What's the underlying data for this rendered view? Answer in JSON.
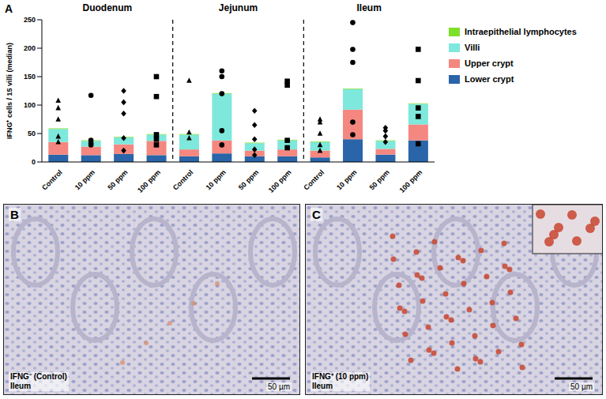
{
  "chart_data": {
    "type": "bar",
    "panel": "A",
    "stacked": true,
    "grid": false,
    "legend": "right",
    "groups": [
      "Duodenum",
      "Jejunum",
      "Ileum"
    ],
    "y_label": "IFNG⁺ cells / 15 villi (median)",
    "categories": [
      "Control",
      "10 ppm",
      "50 ppm",
      "100 ppm",
      "Control",
      "10 ppm",
      "50 ppm",
      "100 ppm",
      "Control",
      "10 ppm",
      "50 ppm",
      "100 ppm"
    ],
    "ylim": [
      0,
      250
    ],
    "yticks": [
      0,
      50,
      100,
      150,
      200,
      250
    ],
    "series": [
      {
        "name": "Intraepithelial lymphocytes",
        "color": "#7ee02a",
        "values": [
          1,
          1,
          1,
          1,
          1,
          1,
          1,
          1,
          1,
          1,
          1,
          1
        ]
      },
      {
        "name": "Villi",
        "color": "#7ee8dc",
        "values": [
          23,
          10,
          12,
          11,
          26,
          82,
          13,
          16,
          15,
          36,
          14,
          36
        ]
      },
      {
        "name": "Upper crypt",
        "color": "#f4877f",
        "values": [
          22,
          15,
          17,
          25,
          12,
          23,
          10,
          12,
          12,
          52,
          10,
          28
        ]
      },
      {
        "name": "Lower crypt",
        "color": "#2965a8",
        "values": [
          13,
          12,
          14,
          12,
          10,
          15,
          10,
          10,
          8,
          40,
          13,
          38
        ]
      }
    ],
    "points": [
      {
        "marker": "triangle",
        "values": [
          108,
          95,
          75,
          45,
          35
        ]
      },
      {
        "marker": "circle",
        "values": [
          117,
          38,
          33,
          30
        ]
      },
      {
        "marker": "diamond",
        "values": [
          125,
          105,
          85,
          42,
          20
        ]
      },
      {
        "marker": "square",
        "values": [
          150,
          115,
          48,
          40,
          30
        ]
      },
      {
        "marker": "triangle",
        "values": [
          143,
          52,
          42
        ]
      },
      {
        "marker": "circle",
        "values": [
          160,
          150,
          120,
          55,
          30
        ]
      },
      {
        "marker": "diamond",
        "values": [
          90,
          65,
          40,
          22,
          12
        ]
      },
      {
        "marker": "square",
        "values": [
          142,
          135,
          38,
          25
        ]
      },
      {
        "marker": "triangle",
        "values": [
          75,
          70,
          50,
          30,
          20
        ]
      },
      {
        "marker": "circle",
        "values": [
          245,
          198,
          175,
          70,
          48
        ]
      },
      {
        "marker": "diamond",
        "values": [
          60,
          55,
          45,
          35
        ]
      },
      {
        "marker": "square",
        "values": [
          198,
          143,
          95,
          80,
          32
        ]
      }
    ]
  },
  "images": [
    {
      "panel": "B",
      "label": "IFNG⁻ (Control)",
      "region": "Ileum",
      "scale_bar": "50 µm"
    },
    {
      "panel": "C",
      "label": "IFNG⁺ (10 ppm)",
      "region": "Ileum",
      "scale_bar": "50 µm"
    }
  ]
}
